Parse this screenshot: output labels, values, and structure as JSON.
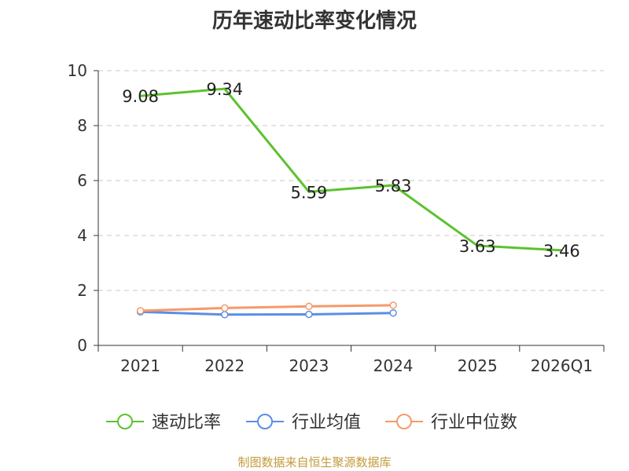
{
  "chart_data": {
    "type": "line",
    "title": "历年速动比率变化情况",
    "categories": [
      "2021",
      "2022",
      "2023",
      "2024",
      "2025",
      "2026Q1"
    ],
    "ylim": [
      0,
      10
    ],
    "yticks": [
      0,
      2,
      4,
      6,
      8,
      10
    ],
    "grid": "y-dashed",
    "legend_position": "bottom-center",
    "series": [
      {
        "name": "速动比率",
        "color": "#5cc22e",
        "marker": "none",
        "show_labels": true,
        "values": [
          9.08,
          9.34,
          5.59,
          5.83,
          3.63,
          3.46
        ],
        "labels": [
          "9.08",
          "9.34",
          "5.59",
          "5.83",
          "3.63",
          "3.46"
        ]
      },
      {
        "name": "行业均值",
        "color": "#5b8ee6",
        "marker": "circle",
        "show_labels": false,
        "values": [
          1.22,
          1.12,
          1.13,
          1.18,
          null,
          null
        ]
      },
      {
        "name": "行业中位数",
        "color": "#f59a6b",
        "marker": "circle",
        "show_labels": false,
        "values": [
          1.26,
          1.36,
          1.42,
          1.46,
          null,
          null
        ]
      }
    ]
  },
  "source": "制图数据来自恒生聚源数据库"
}
